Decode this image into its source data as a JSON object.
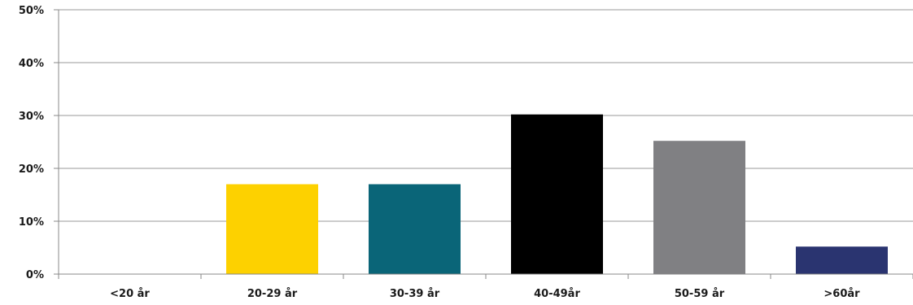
{
  "chart_data": {
    "type": "bar",
    "title": "",
    "xlabel": "",
    "ylabel": "",
    "categories": [
      "<20 år",
      "20-29 år",
      "30-39 år",
      "40-49år",
      "50-59 år",
      ">60år"
    ],
    "values": [
      0,
      17,
      17,
      30.2,
      25.2,
      5.2
    ],
    "colors": [
      "#ffffff",
      "#fdd100",
      "#0a6578",
      "#000000",
      "#808083",
      "#2a3470"
    ],
    "ylim": [
      0,
      50
    ],
    "yticks": [
      0,
      10,
      20,
      30,
      40,
      50
    ],
    "ytick_labels": [
      "0%",
      "10%",
      "20%",
      "30%",
      "40%",
      "50%"
    ],
    "grid": true,
    "legend": "none",
    "axis_color": "#888888",
    "grid_color": "#999999"
  }
}
